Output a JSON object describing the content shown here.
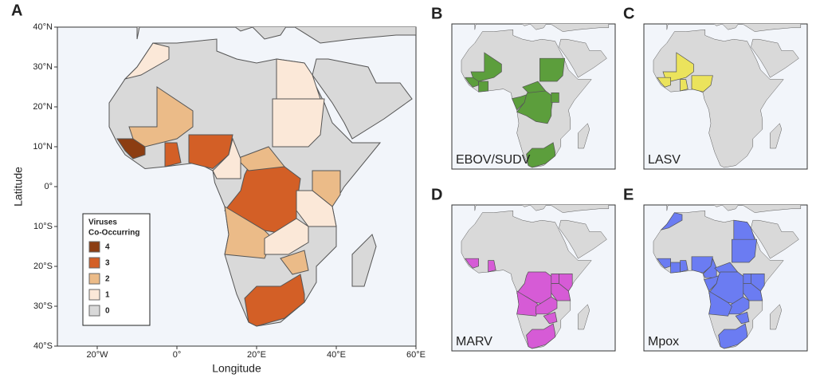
{
  "panel_a": {
    "label": "A",
    "x_axis": {
      "title": "Longitude",
      "ticks": [
        "20°W",
        "0°",
        "20°E",
        "40°E",
        "60°E"
      ]
    },
    "y_axis": {
      "title": "Latitude",
      "ticks": [
        "40°N",
        "30°N",
        "20°N",
        "10°N",
        "0°",
        "10°S",
        "20°S",
        "30°S",
        "40°S"
      ]
    },
    "legend": {
      "title_lines": [
        "Viruses",
        "Co-Occurring"
      ],
      "items": [
        {
          "label": "4",
          "color": "#8c3d12"
        },
        {
          "label": "3",
          "color": "#d35f26"
        },
        {
          "label": "2",
          "color": "#ebbb88"
        },
        {
          "label": "1",
          "color": "#fbe8d8"
        },
        {
          "label": "0",
          "color": "#d9d9d9"
        }
      ]
    }
  },
  "panels": [
    {
      "label": "B",
      "name": "EBOV/SUDV",
      "color": "#5c9e3c"
    },
    {
      "label": "C",
      "name": "LASV",
      "color": "#ebe35c"
    },
    {
      "label": "D",
      "name": "MARV",
      "color": "#d65bd6"
    },
    {
      "label": "E",
      "name": "Mpox",
      "color": "#6b7cf2"
    }
  ]
}
